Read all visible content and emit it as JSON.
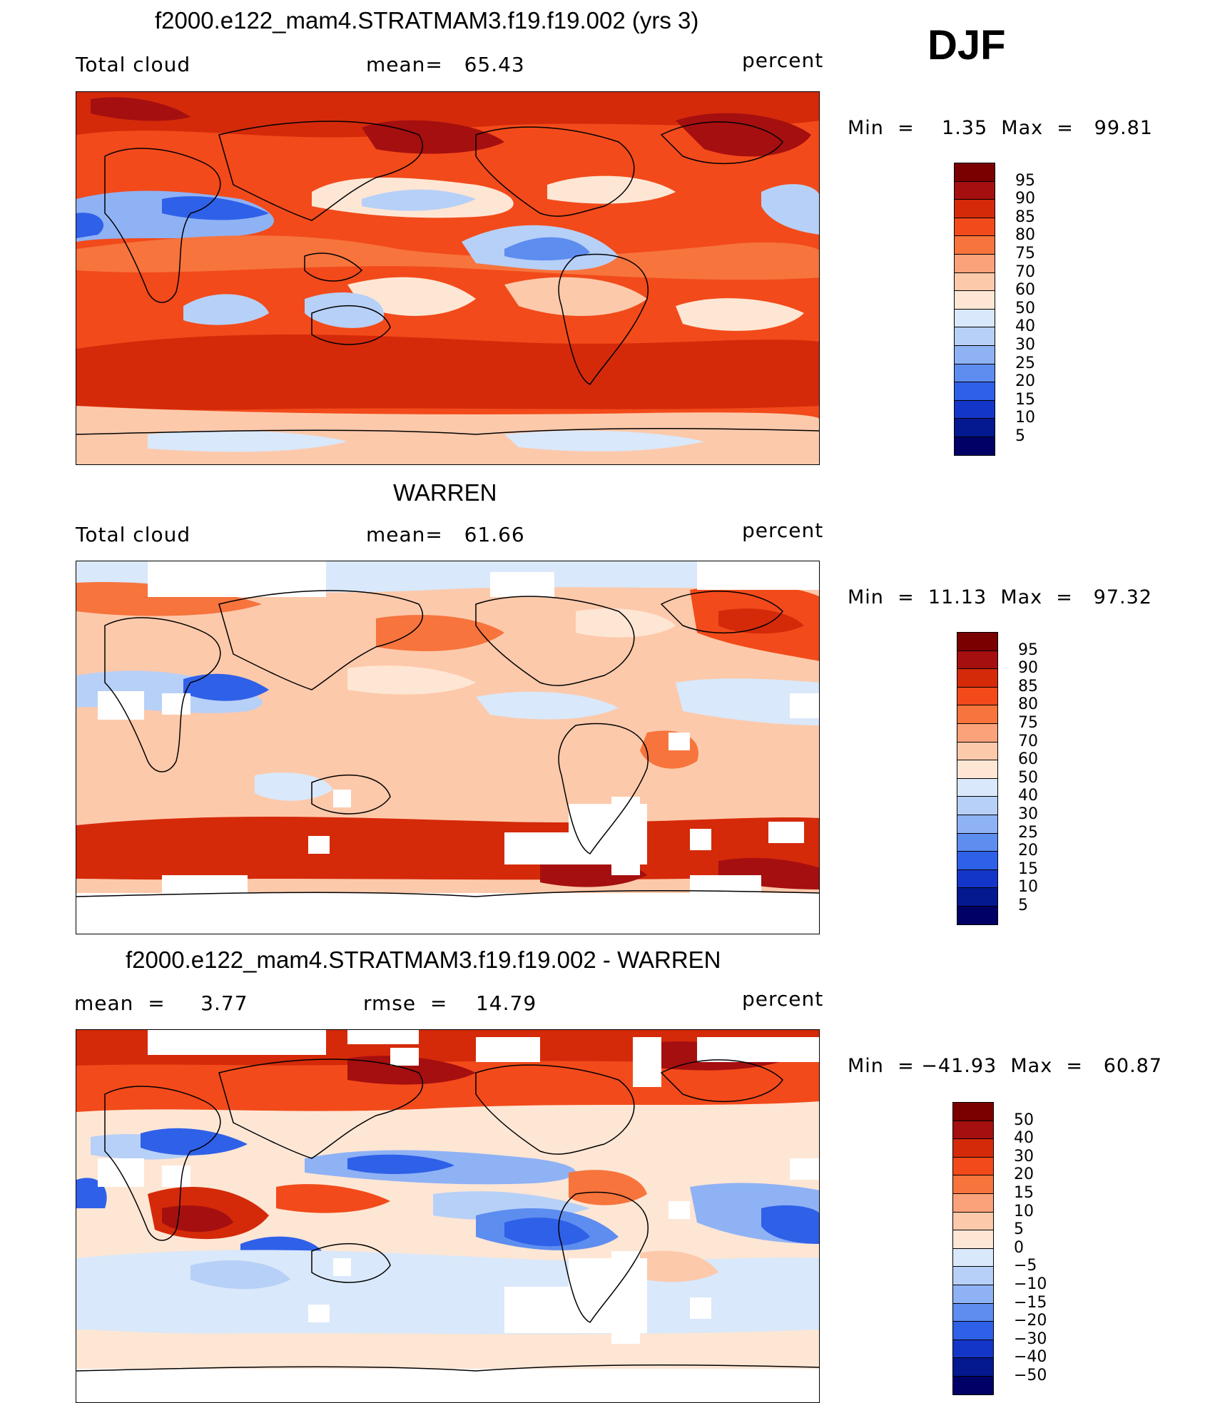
{
  "season": "DJF",
  "panels": [
    {
      "title": "f2000.e122_mam4.STRATMAM3.f19.f19.002 (yrs 3)",
      "left_label": "Total cloud",
      "mid_label": "mean=   65.43",
      "units": "percent",
      "minmax": "Min  =    1.35  Max  =   99.81",
      "colorbar": [
        "95",
        "90",
        "85",
        "80",
        "75",
        "70",
        "60",
        "50",
        "40",
        "30",
        "25",
        "20",
        "15",
        "10",
        "5"
      ]
    },
    {
      "title": "WARREN",
      "left_label": "Total cloud",
      "mid_label": "mean=   61.66",
      "units": "percent",
      "minmax": "Min  =  11.13  Max  =   97.32",
      "colorbar": [
        "95",
        "90",
        "85",
        "80",
        "75",
        "70",
        "60",
        "50",
        "40",
        "30",
        "25",
        "20",
        "15",
        "10",
        "5"
      ]
    },
    {
      "title": "f2000.e122_mam4.STRATMAM3.f19.f19.002 - WARREN",
      "left_label": "mean  =     3.77",
      "mid_label": "rmse  =    14.79",
      "units": "percent",
      "minmax": "Min  = −41.93  Max  =   60.87",
      "colorbar": [
        "50",
        "40",
        "30",
        "20",
        "15",
        "10",
        "5",
        "0",
        "−5",
        "−10",
        "−15",
        "−20",
        "−30",
        "−40",
        "−50"
      ]
    }
  ],
  "colors": {
    "palette": [
      "#7a0000",
      "#a50f0f",
      "#d42a0a",
      "#f24a1a",
      "#f7743d",
      "#fba27a",
      "#fdc9ab",
      "#fee6d4",
      "#d9e8fa",
      "#b7d0f7",
      "#8fb2f5",
      "#5e8df0",
      "#2f60e8",
      "#1436c8",
      "#041890",
      "#000066"
    ],
    "diff_palette": [
      "#7a0000",
      "#a50f0f",
      "#d42a0a",
      "#f24a1a",
      "#f7743d",
      "#fba27a",
      "#fdc9ab",
      "#fee6d4",
      "#d9e8fa",
      "#b7d0f7",
      "#8fb2f5",
      "#5e8df0",
      "#2f60e8",
      "#1436c8",
      "#041890",
      "#000066"
    ]
  }
}
